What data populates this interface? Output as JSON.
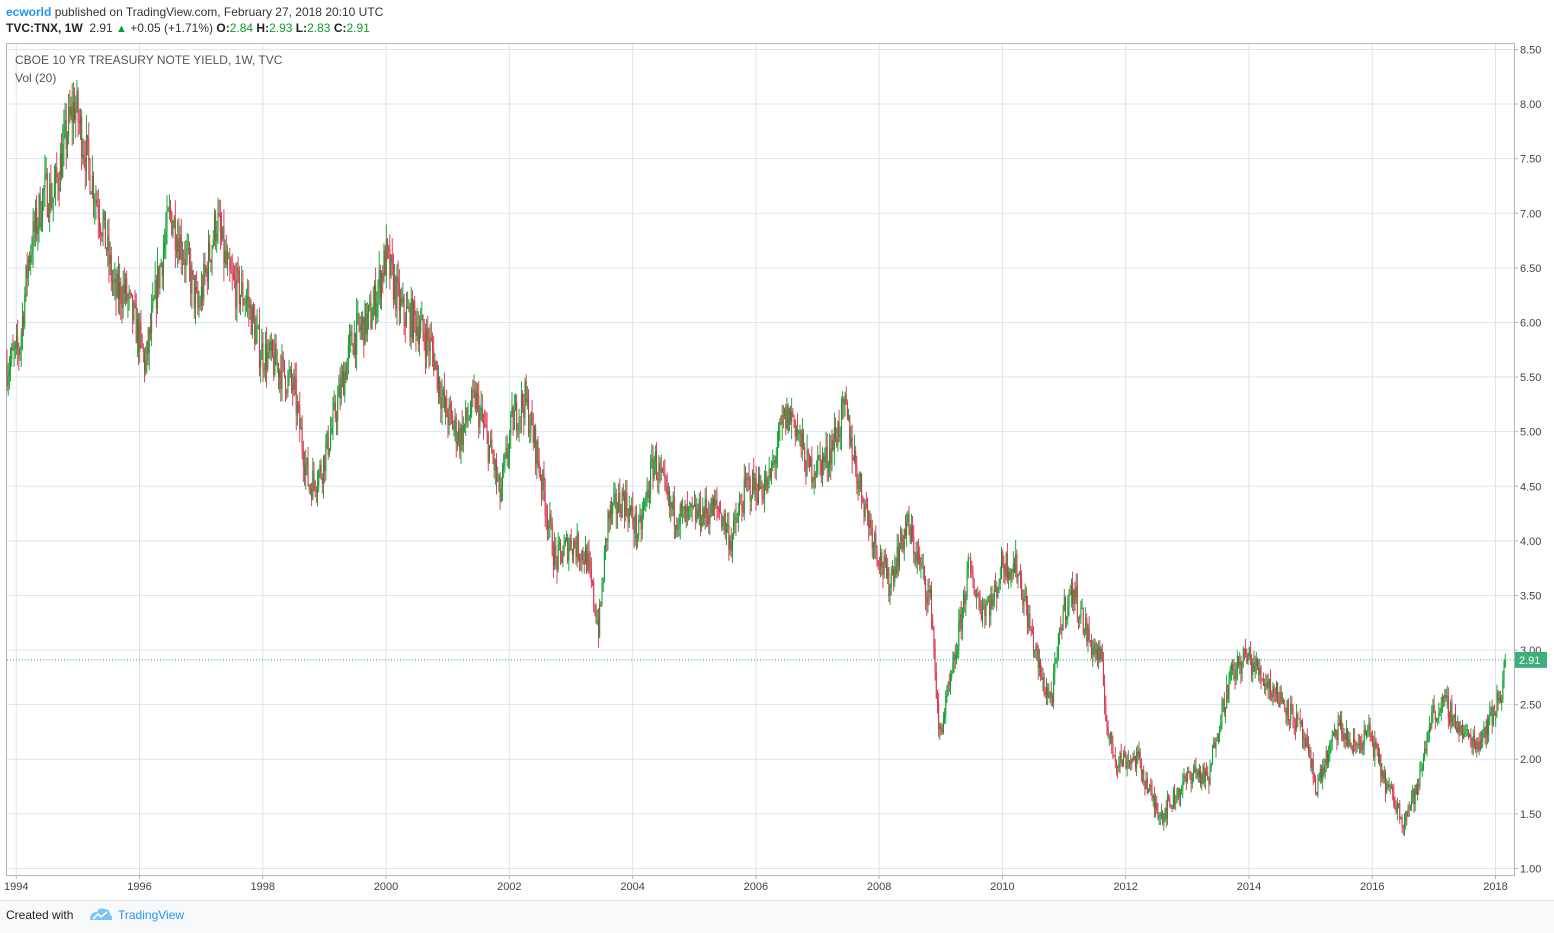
{
  "header": {
    "author": "ecworld",
    "published_text": "published on TradingView.com, February 27, 2018 20:10 UTC",
    "symbol": "TVC:TNX, 1W",
    "last": "2.91",
    "change": "+0.05 (+1.71%)",
    "o_label": "O:",
    "o_value": "2.84",
    "h_label": "H:",
    "h_value": "2.93",
    "l_label": "L:",
    "l_value": "2.83",
    "c_label": "C:",
    "c_value": "2.91"
  },
  "legend": {
    "title": "CBOE 10 YR TREASURY NOTE YIELD, 1W, TVC",
    "indicator": "Vol (20)"
  },
  "footer": {
    "created_with": "Created with",
    "brand": "TradingView"
  },
  "colors": {
    "up": "#0a9d2c",
    "down": "#d6304a",
    "grid": "#dbe5ef",
    "price_line": "#2e9e8f",
    "price_label_bg": "#3fae7a",
    "brand": "#2196f3"
  },
  "chart_data": {
    "type": "candlestick",
    "title": "CBOE 10 YR TREASURY NOTE YIELD, 1W, TVC",
    "xlim": [
      1993.85,
      2018.3
    ],
    "ylim": [
      0.94,
      8.55
    ],
    "y_ticks": [
      "1.00",
      "1.50",
      "2.00",
      "2.50",
      "3.00",
      "3.50",
      "4.00",
      "4.50",
      "5.00",
      "5.50",
      "6.00",
      "6.50",
      "7.00",
      "7.50",
      "8.00",
      "8.50"
    ],
    "x_ticks": [
      "1994",
      "1996",
      "1998",
      "2000",
      "2002",
      "2004",
      "2006",
      "2008",
      "2010",
      "2012",
      "2014",
      "2016",
      "2018"
    ],
    "last_price": 2.91,
    "last_price_label": "2.91",
    "keypoints": [
      [
        1993.85,
        5.6
      ],
      [
        1994.05,
        5.75
      ],
      [
        1994.2,
        6.6
      ],
      [
        1994.45,
        7.2
      ],
      [
        1994.6,
        7.15
      ],
      [
        1994.85,
        7.8
      ],
      [
        1994.95,
        8.0
      ],
      [
        1995.15,
        7.5
      ],
      [
        1995.4,
        6.9
      ],
      [
        1995.6,
        6.25
      ],
      [
        1995.75,
        6.3
      ],
      [
        1995.95,
        5.95
      ],
      [
        1996.1,
        5.6
      ],
      [
        1996.3,
        6.4
      ],
      [
        1996.5,
        7.0
      ],
      [
        1996.75,
        6.6
      ],
      [
        1996.95,
        6.1
      ],
      [
        1997.25,
        6.95
      ],
      [
        1997.45,
        6.4
      ],
      [
        1997.75,
        6.2
      ],
      [
        1997.95,
        5.75
      ],
      [
        1998.25,
        5.6
      ],
      [
        1998.5,
        5.4
      ],
      [
        1998.75,
        4.5
      ],
      [
        1998.95,
        4.65
      ],
      [
        1999.15,
        5.1
      ],
      [
        1999.45,
        5.85
      ],
      [
        1999.75,
        6.05
      ],
      [
        2000.0,
        6.6
      ],
      [
        2000.25,
        6.1
      ],
      [
        2000.5,
        6.0
      ],
      [
        2000.75,
        5.75
      ],
      [
        2000.95,
        5.2
      ],
      [
        2001.2,
        4.95
      ],
      [
        2001.45,
        5.3
      ],
      [
        2001.75,
        4.7
      ],
      [
        2001.85,
        4.4
      ],
      [
        2002.05,
        5.1
      ],
      [
        2002.25,
        5.3
      ],
      [
        2002.45,
        4.8
      ],
      [
        2002.6,
        4.3
      ],
      [
        2002.75,
        3.8
      ],
      [
        2003.0,
        4.0
      ],
      [
        2003.25,
        3.85
      ],
      [
        2003.45,
        3.2
      ],
      [
        2003.6,
        4.2
      ],
      [
        2003.85,
        4.4
      ],
      [
        2004.1,
        4.05
      ],
      [
        2004.35,
        4.75
      ],
      [
        2004.6,
        4.3
      ],
      [
        2004.85,
        4.2
      ],
      [
        2005.1,
        4.25
      ],
      [
        2005.4,
        4.3
      ],
      [
        2005.6,
        4.0
      ],
      [
        2005.85,
        4.5
      ],
      [
        2006.2,
        4.5
      ],
      [
        2006.45,
        5.1
      ],
      [
        2006.6,
        5.15
      ],
      [
        2006.85,
        4.65
      ],
      [
        2007.15,
        4.75
      ],
      [
        2007.45,
        5.2
      ],
      [
        2007.65,
        4.6
      ],
      [
        2007.9,
        4.05
      ],
      [
        2008.15,
        3.6
      ],
      [
        2008.45,
        4.15
      ],
      [
        2008.65,
        3.8
      ],
      [
        2008.85,
        3.4
      ],
      [
        2008.97,
        2.2
      ],
      [
        2009.2,
        2.8
      ],
      [
        2009.45,
        3.75
      ],
      [
        2009.65,
        3.4
      ],
      [
        2009.85,
        3.45
      ],
      [
        2010.0,
        3.8
      ],
      [
        2010.25,
        3.75
      ],
      [
        2010.45,
        3.2
      ],
      [
        2010.65,
        2.7
      ],
      [
        2010.8,
        2.55
      ],
      [
        2010.98,
        3.35
      ],
      [
        2011.15,
        3.55
      ],
      [
        2011.4,
        3.1
      ],
      [
        2011.6,
        2.9
      ],
      [
        2011.72,
        2.2
      ],
      [
        2011.85,
        2.0
      ],
      [
        2012.2,
        2.0
      ],
      [
        2012.45,
        1.6
      ],
      [
        2012.6,
        1.5
      ],
      [
        2012.85,
        1.7
      ],
      [
        2013.1,
        1.9
      ],
      [
        2013.35,
        1.8
      ],
      [
        2013.45,
        2.2
      ],
      [
        2013.7,
        2.75
      ],
      [
        2013.95,
        2.95
      ],
      [
        2014.3,
        2.7
      ],
      [
        2014.6,
        2.5
      ],
      [
        2014.85,
        2.25
      ],
      [
        2015.1,
        1.75
      ],
      [
        2015.45,
        2.3
      ],
      [
        2015.7,
        2.1
      ],
      [
        2015.95,
        2.25
      ],
      [
        2016.2,
        1.8
      ],
      [
        2016.5,
        1.45
      ],
      [
        2016.75,
        1.75
      ],
      [
        2016.95,
        2.4
      ],
      [
        2017.2,
        2.5
      ],
      [
        2017.45,
        2.25
      ],
      [
        2017.7,
        2.15
      ],
      [
        2017.95,
        2.4
      ],
      [
        2018.1,
        2.65
      ],
      [
        2018.16,
        2.91
      ]
    ]
  }
}
